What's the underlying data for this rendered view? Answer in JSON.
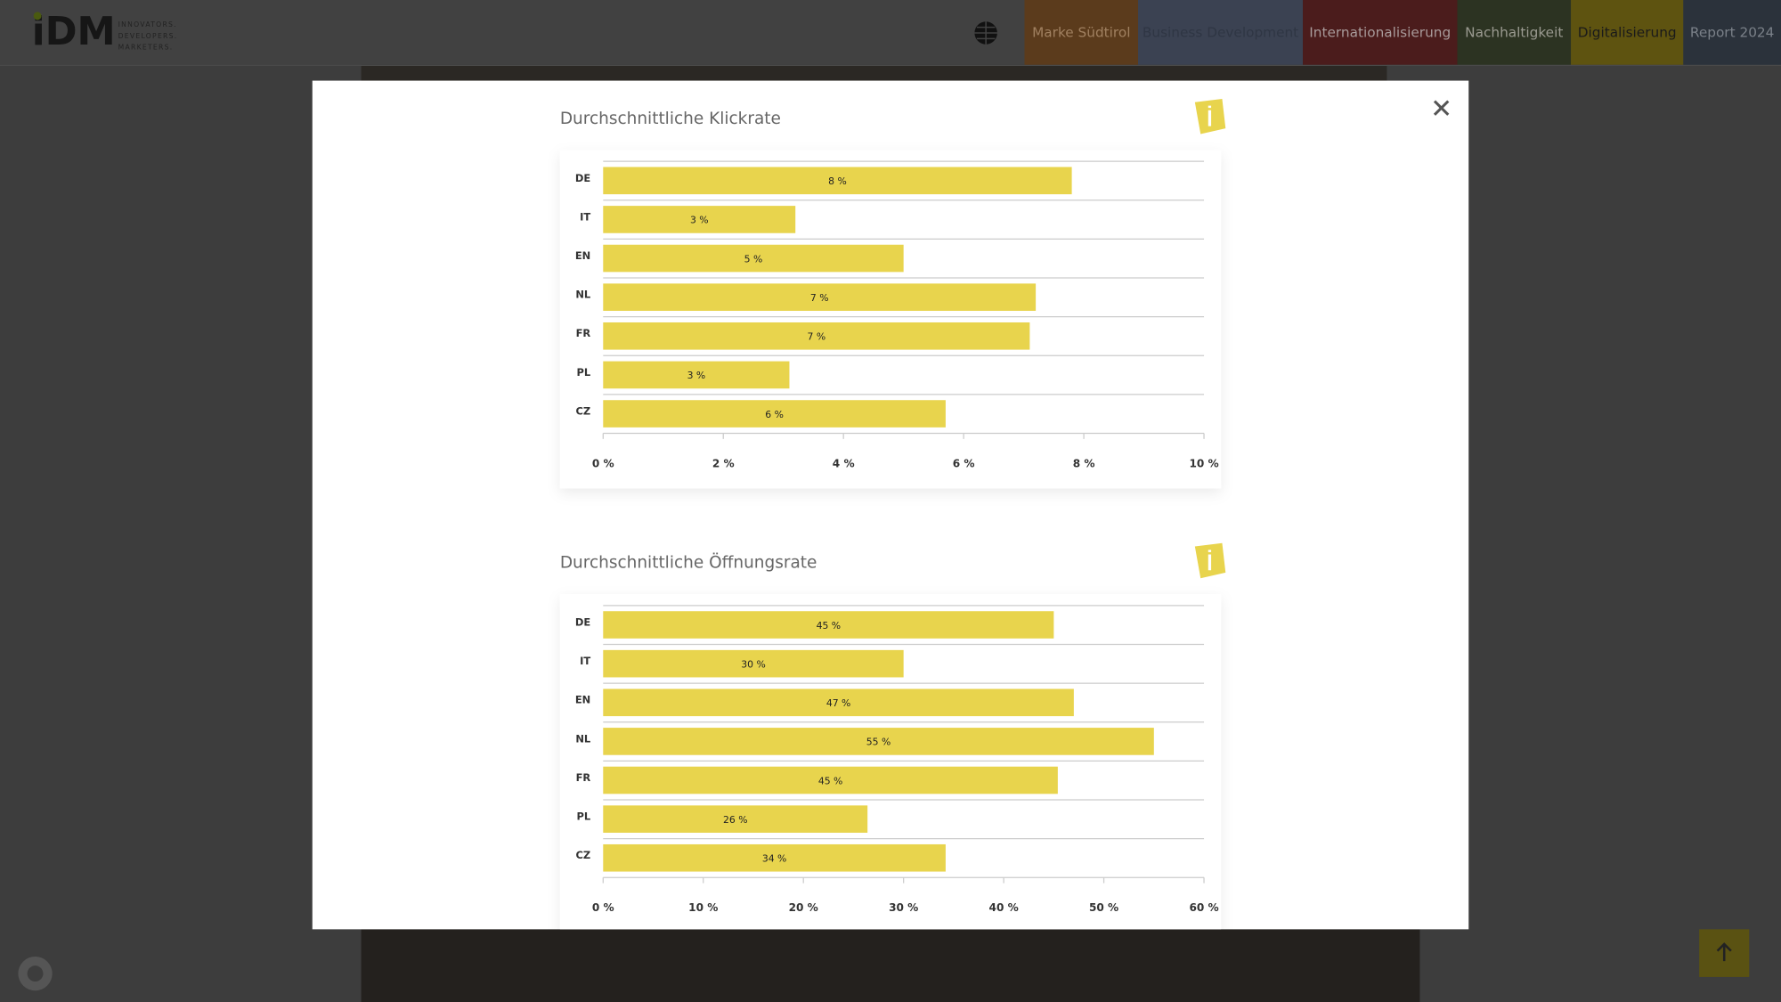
{
  "header": {
    "logo": "iDM",
    "tagline": [
      "INNOVATORS.",
      "DEVELOPERS.",
      "MARKETERS."
    ],
    "nav": [
      "Marke Südtirol",
      "Business Development",
      "Internationalisierung",
      "Nachhaltigkeit",
      "Digitalisierung",
      "Report 2024"
    ]
  },
  "chart_data": [
    {
      "type": "bar",
      "orientation": "horizontal",
      "title": "Durchschnittliche Klickrate",
      "categories": [
        "DE",
        "IT",
        "EN",
        "NL",
        "FR",
        "PL",
        "CZ"
      ],
      "values": [
        7.8,
        3.2,
        5.0,
        7.2,
        7.1,
        3.1,
        5.7
      ],
      "value_labels": [
        "8 %",
        "3 %",
        "5 %",
        "7 %",
        "7 %",
        "3 %",
        "6 %"
      ],
      "color": "#e8d44d",
      "xlim": [
        0,
        10
      ],
      "xticks": [
        {
          "value": 0,
          "label": "0 %"
        },
        {
          "value": 2,
          "label": "2 %"
        },
        {
          "value": 4,
          "label": "4 %"
        },
        {
          "value": 6,
          "label": "6 %"
        },
        {
          "value": 8,
          "label": "8 %"
        },
        {
          "value": 10,
          "label": "10 %"
        }
      ]
    },
    {
      "type": "bar",
      "orientation": "horizontal",
      "title": "Durchschnittliche Öffnungsrate",
      "categories": [
        "DE",
        "IT",
        "EN",
        "NL",
        "FR",
        "PL",
        "CZ"
      ],
      "values": [
        45,
        30,
        47,
        55,
        45.4,
        26.4,
        34.2
      ],
      "value_labels": [
        "45 %",
        "30 %",
        "47 %",
        "55 %",
        "45 %",
        "26 %",
        "34 %"
      ],
      "color": "#e8d44d",
      "xlim": [
        0,
        60
      ],
      "xticks": [
        {
          "value": 0,
          "label": "0 %"
        },
        {
          "value": 10,
          "label": "10 %"
        },
        {
          "value": 20,
          "label": "20 %"
        },
        {
          "value": 30,
          "label": "30 %"
        },
        {
          "value": 40,
          "label": "40 %"
        },
        {
          "value": 50,
          "label": "50 %"
        },
        {
          "value": 60,
          "label": "60 %"
        }
      ]
    }
  ]
}
